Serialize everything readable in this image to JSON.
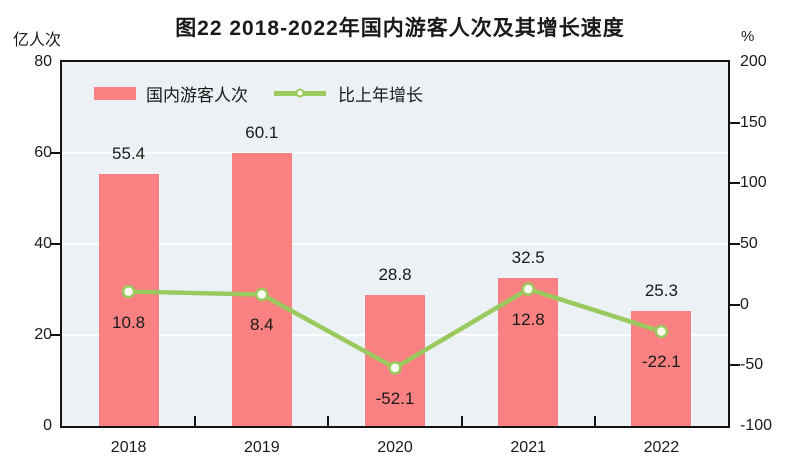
{
  "title": "图22  2018-2022年国内游客人次及其增长速度",
  "left_axis_unit": "亿人次",
  "right_axis_unit": "%",
  "legend": {
    "bar_label": "国内游客人次",
    "line_label": "比上年增长"
  },
  "colors": {
    "bar": "#f98181",
    "line": "#9ac95e",
    "marker_fill": "#fdfdef",
    "plot_bg": "#ebf1f4",
    "grid": "#ffffff",
    "axis": "#141414",
    "text": "#1a1a1a"
  },
  "chart_data": {
    "type": "bar",
    "subtype": "bar-and-line-combo",
    "title": "图22  2018-2022年国内游客人次及其增长速度",
    "categories": [
      "2018",
      "2019",
      "2020",
      "2021",
      "2022"
    ],
    "series": [
      {
        "name": "国内游客人次",
        "type": "bar",
        "axis": "left",
        "values": [
          55.4,
          60.1,
          28.8,
          32.5,
          25.3
        ]
      },
      {
        "name": "比上年增长",
        "type": "line",
        "axis": "right",
        "values": [
          10.8,
          8.4,
          -52.1,
          12.8,
          -22.1
        ]
      }
    ],
    "left_axis": {
      "label": "亿人次",
      "min": 0,
      "max": 80,
      "step": 20
    },
    "right_axis": {
      "label": "%",
      "min": -100,
      "max": 200,
      "step": 50
    },
    "grid": "horizontal gridlines at left-axis interior ticks (20/40/60)",
    "legend_position": "top-left inside plot area",
    "data_labels": "bar values above bars, line values below markers"
  }
}
